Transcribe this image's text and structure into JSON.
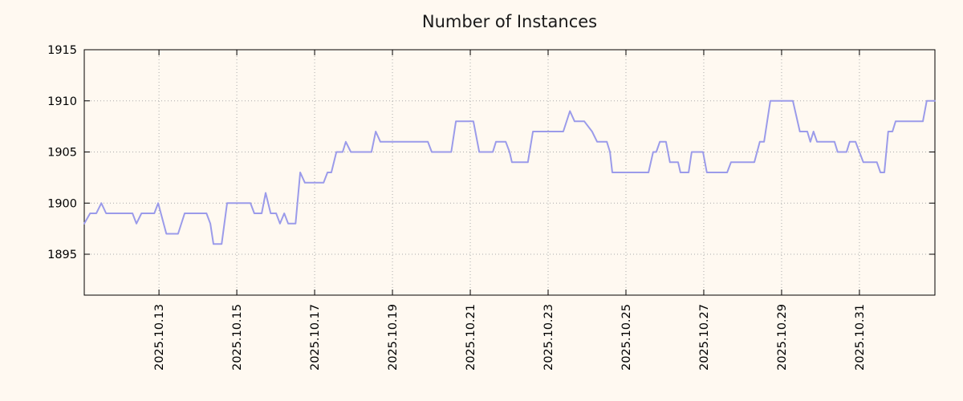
{
  "chart_data": {
    "type": "line",
    "title": "Number of Instances",
    "xlabel": "",
    "ylabel": "",
    "grid": true,
    "legend": "none",
    "x_tick_rotation_deg": 90,
    "xlim": [
      11.08,
      32.94
    ],
    "ylim": [
      1891,
      1915
    ],
    "background_color": "#fff9f1",
    "line_color": "#9b9bea",
    "grid_color": "#aaaaaa",
    "axis_color": "#000000",
    "x_ticks": [
      {
        "pos": 13,
        "label": "2025.10.13"
      },
      {
        "pos": 15,
        "label": "2025.10.15"
      },
      {
        "pos": 17,
        "label": "2025.10.17"
      },
      {
        "pos": 19,
        "label": "2025.10.19"
      },
      {
        "pos": 21,
        "label": "2025.10.21"
      },
      {
        "pos": 23,
        "label": "2025.10.23"
      },
      {
        "pos": 25,
        "label": "2025.10.25"
      },
      {
        "pos": 27,
        "label": "2025.10.27"
      },
      {
        "pos": 29,
        "label": "2025.10.29"
      },
      {
        "pos": 31,
        "label": "2025.10.31"
      }
    ],
    "y_ticks": [
      {
        "pos": 1895,
        "label": "1895"
      },
      {
        "pos": 1900,
        "label": "1900"
      },
      {
        "pos": 1905,
        "label": "1905"
      },
      {
        "pos": 1910,
        "label": "1910"
      },
      {
        "pos": 1915,
        "label": "1915"
      }
    ],
    "series": [
      {
        "name": "instances",
        "points": [
          [
            11.08,
            1898
          ],
          [
            11.23,
            1899
          ],
          [
            11.39,
            1899
          ],
          [
            11.52,
            1900
          ],
          [
            11.64,
            1899
          ],
          [
            12.32,
            1899
          ],
          [
            12.42,
            1898
          ],
          [
            12.55,
            1899
          ],
          [
            12.88,
            1899
          ],
          [
            12.98,
            1900
          ],
          [
            13.19,
            1897
          ],
          [
            13.49,
            1897
          ],
          [
            13.66,
            1899
          ],
          [
            14.22,
            1899
          ],
          [
            14.32,
            1898
          ],
          [
            14.4,
            1896
          ],
          [
            14.61,
            1896
          ],
          [
            14.75,
            1900
          ],
          [
            15.35,
            1900
          ],
          [
            15.45,
            1899
          ],
          [
            15.64,
            1899
          ],
          [
            15.74,
            1901
          ],
          [
            15.87,
            1899
          ],
          [
            16.01,
            1899
          ],
          [
            16.11,
            1898
          ],
          [
            16.22,
            1899
          ],
          [
            16.32,
            1898
          ],
          [
            16.51,
            1898
          ],
          [
            16.63,
            1903
          ],
          [
            16.75,
            1902
          ],
          [
            17.23,
            1902
          ],
          [
            17.33,
            1903
          ],
          [
            17.43,
            1903
          ],
          [
            17.56,
            1905
          ],
          [
            17.72,
            1905
          ],
          [
            17.8,
            1906
          ],
          [
            17.93,
            1905
          ],
          [
            18.46,
            1905
          ],
          [
            18.57,
            1907
          ],
          [
            18.69,
            1906
          ],
          [
            19.91,
            1906
          ],
          [
            20.01,
            1905
          ],
          [
            20.51,
            1905
          ],
          [
            20.63,
            1908
          ],
          [
            21.08,
            1908
          ],
          [
            21.23,
            1905
          ],
          [
            21.58,
            1905
          ],
          [
            21.66,
            1906
          ],
          [
            21.91,
            1906
          ],
          [
            22.01,
            1905
          ],
          [
            22.07,
            1904
          ],
          [
            22.48,
            1904
          ],
          [
            22.61,
            1907
          ],
          [
            23.39,
            1907
          ],
          [
            23.56,
            1909
          ],
          [
            23.68,
            1908
          ],
          [
            23.93,
            1908
          ],
          [
            24.13,
            1907
          ],
          [
            24.26,
            1906
          ],
          [
            24.51,
            1906
          ],
          [
            24.59,
            1905
          ],
          [
            24.65,
            1903
          ],
          [
            25.58,
            1903
          ],
          [
            25.7,
            1905
          ],
          [
            25.78,
            1905
          ],
          [
            25.87,
            1906
          ],
          [
            26.03,
            1906
          ],
          [
            26.13,
            1904
          ],
          [
            26.34,
            1904
          ],
          [
            26.4,
            1903
          ],
          [
            26.61,
            1903
          ],
          [
            26.69,
            1905
          ],
          [
            26.98,
            1905
          ],
          [
            27.08,
            1903
          ],
          [
            27.6,
            1903
          ],
          [
            27.7,
            1904
          ],
          [
            28.3,
            1904
          ],
          [
            28.44,
            1906
          ],
          [
            28.55,
            1906
          ],
          [
            28.71,
            1910
          ],
          [
            29.29,
            1910
          ],
          [
            29.47,
            1907
          ],
          [
            29.66,
            1907
          ],
          [
            29.74,
            1906
          ],
          [
            29.82,
            1907
          ],
          [
            29.91,
            1906
          ],
          [
            30.36,
            1906
          ],
          [
            30.44,
            1905
          ],
          [
            30.67,
            1905
          ],
          [
            30.75,
            1906
          ],
          [
            30.9,
            1906
          ],
          [
            31.0,
            1905
          ],
          [
            31.1,
            1904
          ],
          [
            31.45,
            1904
          ],
          [
            31.54,
            1903
          ],
          [
            31.64,
            1903
          ],
          [
            31.74,
            1907
          ],
          [
            31.85,
            1907
          ],
          [
            31.93,
            1908
          ],
          [
            32.63,
            1908
          ],
          [
            32.73,
            1910
          ],
          [
            32.94,
            1910
          ]
        ]
      }
    ]
  }
}
